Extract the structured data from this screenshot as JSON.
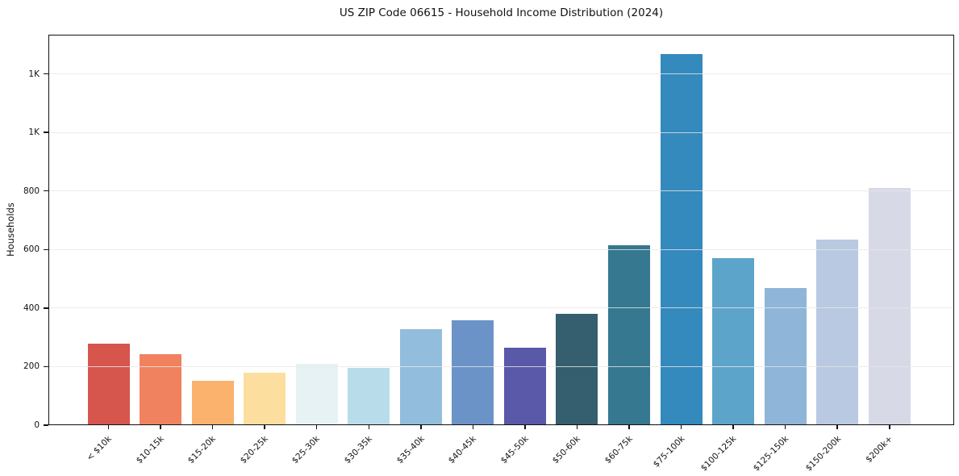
{
  "chart_data": {
    "type": "bar",
    "title": "US ZIP Code 06615 - Household Income Distribution (2024)",
    "xlabel": "",
    "ylabel": "Households",
    "categories": [
      "< $10k",
      "$10-15k",
      "$15-20k",
      "$20-25k",
      "$25-30k",
      "$30-35k",
      "$35-40k",
      "$40-45k",
      "$45-50k",
      "$50-60k",
      "$60-75k",
      "$75-100k",
      "$100-125k",
      "$125-150k",
      "$150-200k",
      "$200k+"
    ],
    "values": [
      277,
      242,
      152,
      178,
      210,
      195,
      328,
      358,
      264,
      380,
      616,
      1268,
      570,
      468,
      634,
      809
    ],
    "bar_colors": [
      "#d6564e",
      "#f0825f",
      "#fab26d",
      "#fcdf9e",
      "#e6f2f3",
      "#b9dcea",
      "#92bddc",
      "#6b93c7",
      "#5a58a8",
      "#355e6e",
      "#35788f",
      "#3489bd",
      "#5ca4ca",
      "#8fb5d8",
      "#b9c9e1",
      "#d7d9e7"
    ],
    "ytick_values": [
      0,
      200,
      400,
      600,
      800,
      1000,
      1200
    ],
    "ytick_labels": [
      "0",
      "200",
      "400",
      "600",
      "800",
      "1K",
      "1K"
    ],
    "ylim": [
      0,
      1334
    ],
    "grid": "horizontal",
    "legend": "none",
    "background": "#ffffff",
    "spine_color": "#111111",
    "grid_color": "#ececec",
    "text_color": "#111111"
  }
}
